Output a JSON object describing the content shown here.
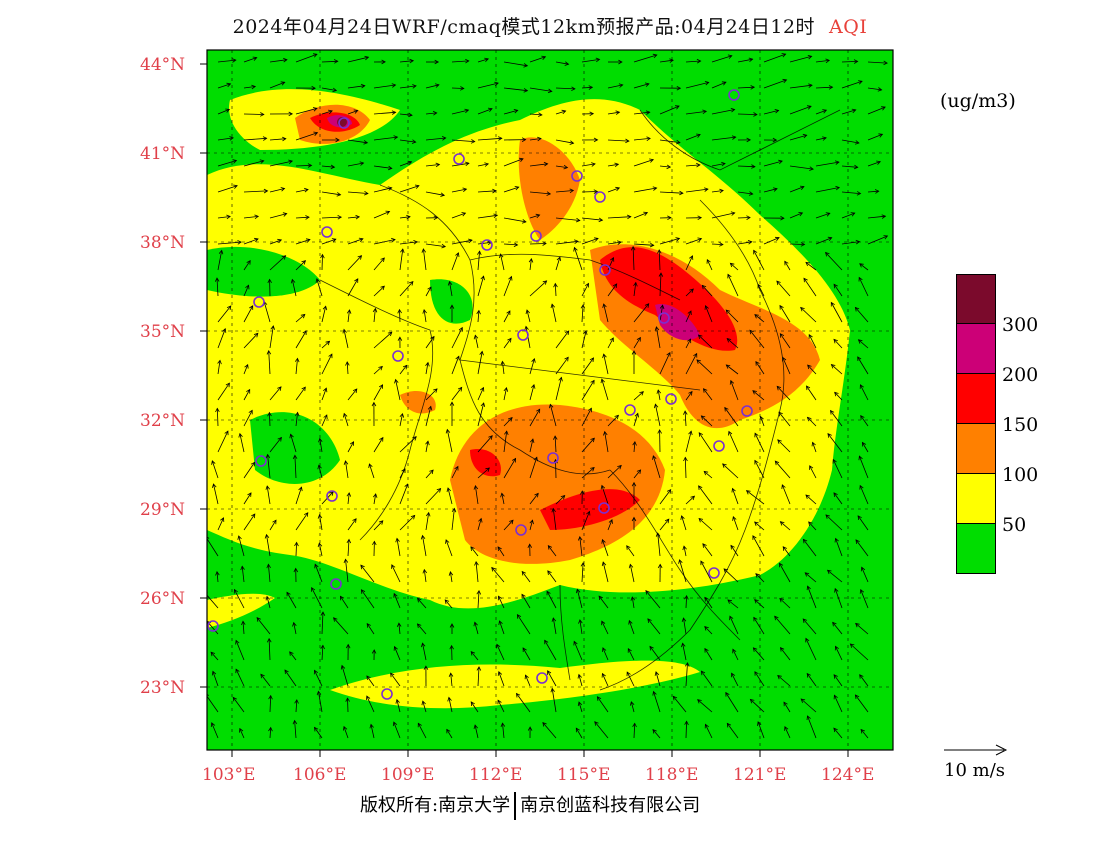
{
  "title": {
    "main": "2024年04月24日WRF/cmaq模式12km预报产品:04月24日12时",
    "variable": "AQI"
  },
  "units": "(ug/m3)",
  "colorbar": {
    "levels": [
      "300",
      "200",
      "150",
      "100",
      "50"
    ],
    "colors": [
      "#7b0a2c",
      "#cc0077",
      "#ff0000",
      "#ff8000",
      "#ffff00",
      "#00dd00"
    ]
  },
  "wind_reference": {
    "label": "10 m/s"
  },
  "footer": {
    "left": "版权所有:南京大学",
    "right": "南京创蓝科技有限公司"
  },
  "axes": {
    "lat_labels": [
      "44°N",
      "41°N",
      "38°N",
      "35°N",
      "32°N",
      "29°N",
      "26°N",
      "23°N"
    ],
    "lon_labels": [
      "103°E",
      "106°E",
      "109°E",
      "112°E",
      "115°E",
      "118°E",
      "121°E",
      "124°E"
    ]
  },
  "map_colors": {
    "green": "#00dd00",
    "yellow": "#ffff00",
    "orange": "#ff8000",
    "red": "#ff0000",
    "magenta": "#cc0077",
    "dark": "#7b0a2c",
    "station": "#7b2fd0"
  }
}
